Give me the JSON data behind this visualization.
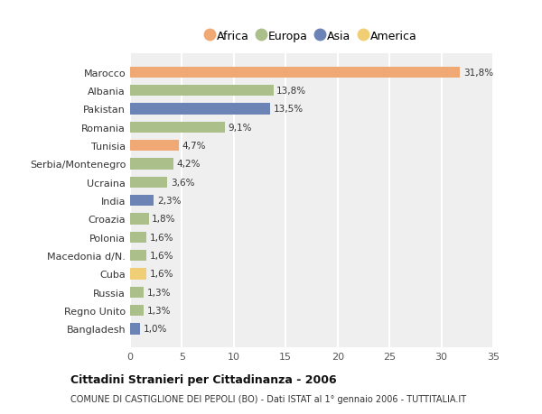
{
  "countries": [
    "Marocco",
    "Albania",
    "Pakistan",
    "Romania",
    "Tunisia",
    "Serbia/Montenegro",
    "Ucraina",
    "India",
    "Croazia",
    "Polonia",
    "Macedonia d/N.",
    "Cuba",
    "Russia",
    "Regno Unito",
    "Bangladesh"
  ],
  "values": [
    31.8,
    13.8,
    13.5,
    9.1,
    4.7,
    4.2,
    3.6,
    2.3,
    1.8,
    1.6,
    1.6,
    1.6,
    1.3,
    1.3,
    1.0
  ],
  "labels": [
    "31,8%",
    "13,8%",
    "13,5%",
    "9,1%",
    "4,7%",
    "4,2%",
    "3,6%",
    "2,3%",
    "1,8%",
    "1,6%",
    "1,6%",
    "1,6%",
    "1,3%",
    "1,3%",
    "1,0%"
  ],
  "continents": [
    "Africa",
    "Europa",
    "Asia",
    "Europa",
    "Africa",
    "Europa",
    "Europa",
    "Asia",
    "Europa",
    "Europa",
    "Europa",
    "America",
    "Europa",
    "Europa",
    "Asia"
  ],
  "continent_colors": {
    "Africa": "#F0A875",
    "Europa": "#AABF8A",
    "Asia": "#6B83B5",
    "America": "#F0CE75"
  },
  "legend_order": [
    "Africa",
    "Europa",
    "Asia",
    "America"
  ],
  "title": "Cittadini Stranieri per Cittadinanza - 2006",
  "subtitle": "COMUNE DI CASTIGLIONE DEI PEPOLI (BO) - Dati ISTAT al 1° gennaio 2006 - TUTTITALIA.IT",
  "xlim": [
    0,
    35
  ],
  "xticks": [
    0,
    5,
    10,
    15,
    20,
    25,
    30,
    35
  ],
  "bg_color": "#ffffff",
  "plot_bg_color": "#efefef",
  "grid_color": "#ffffff",
  "bar_height": 0.6
}
